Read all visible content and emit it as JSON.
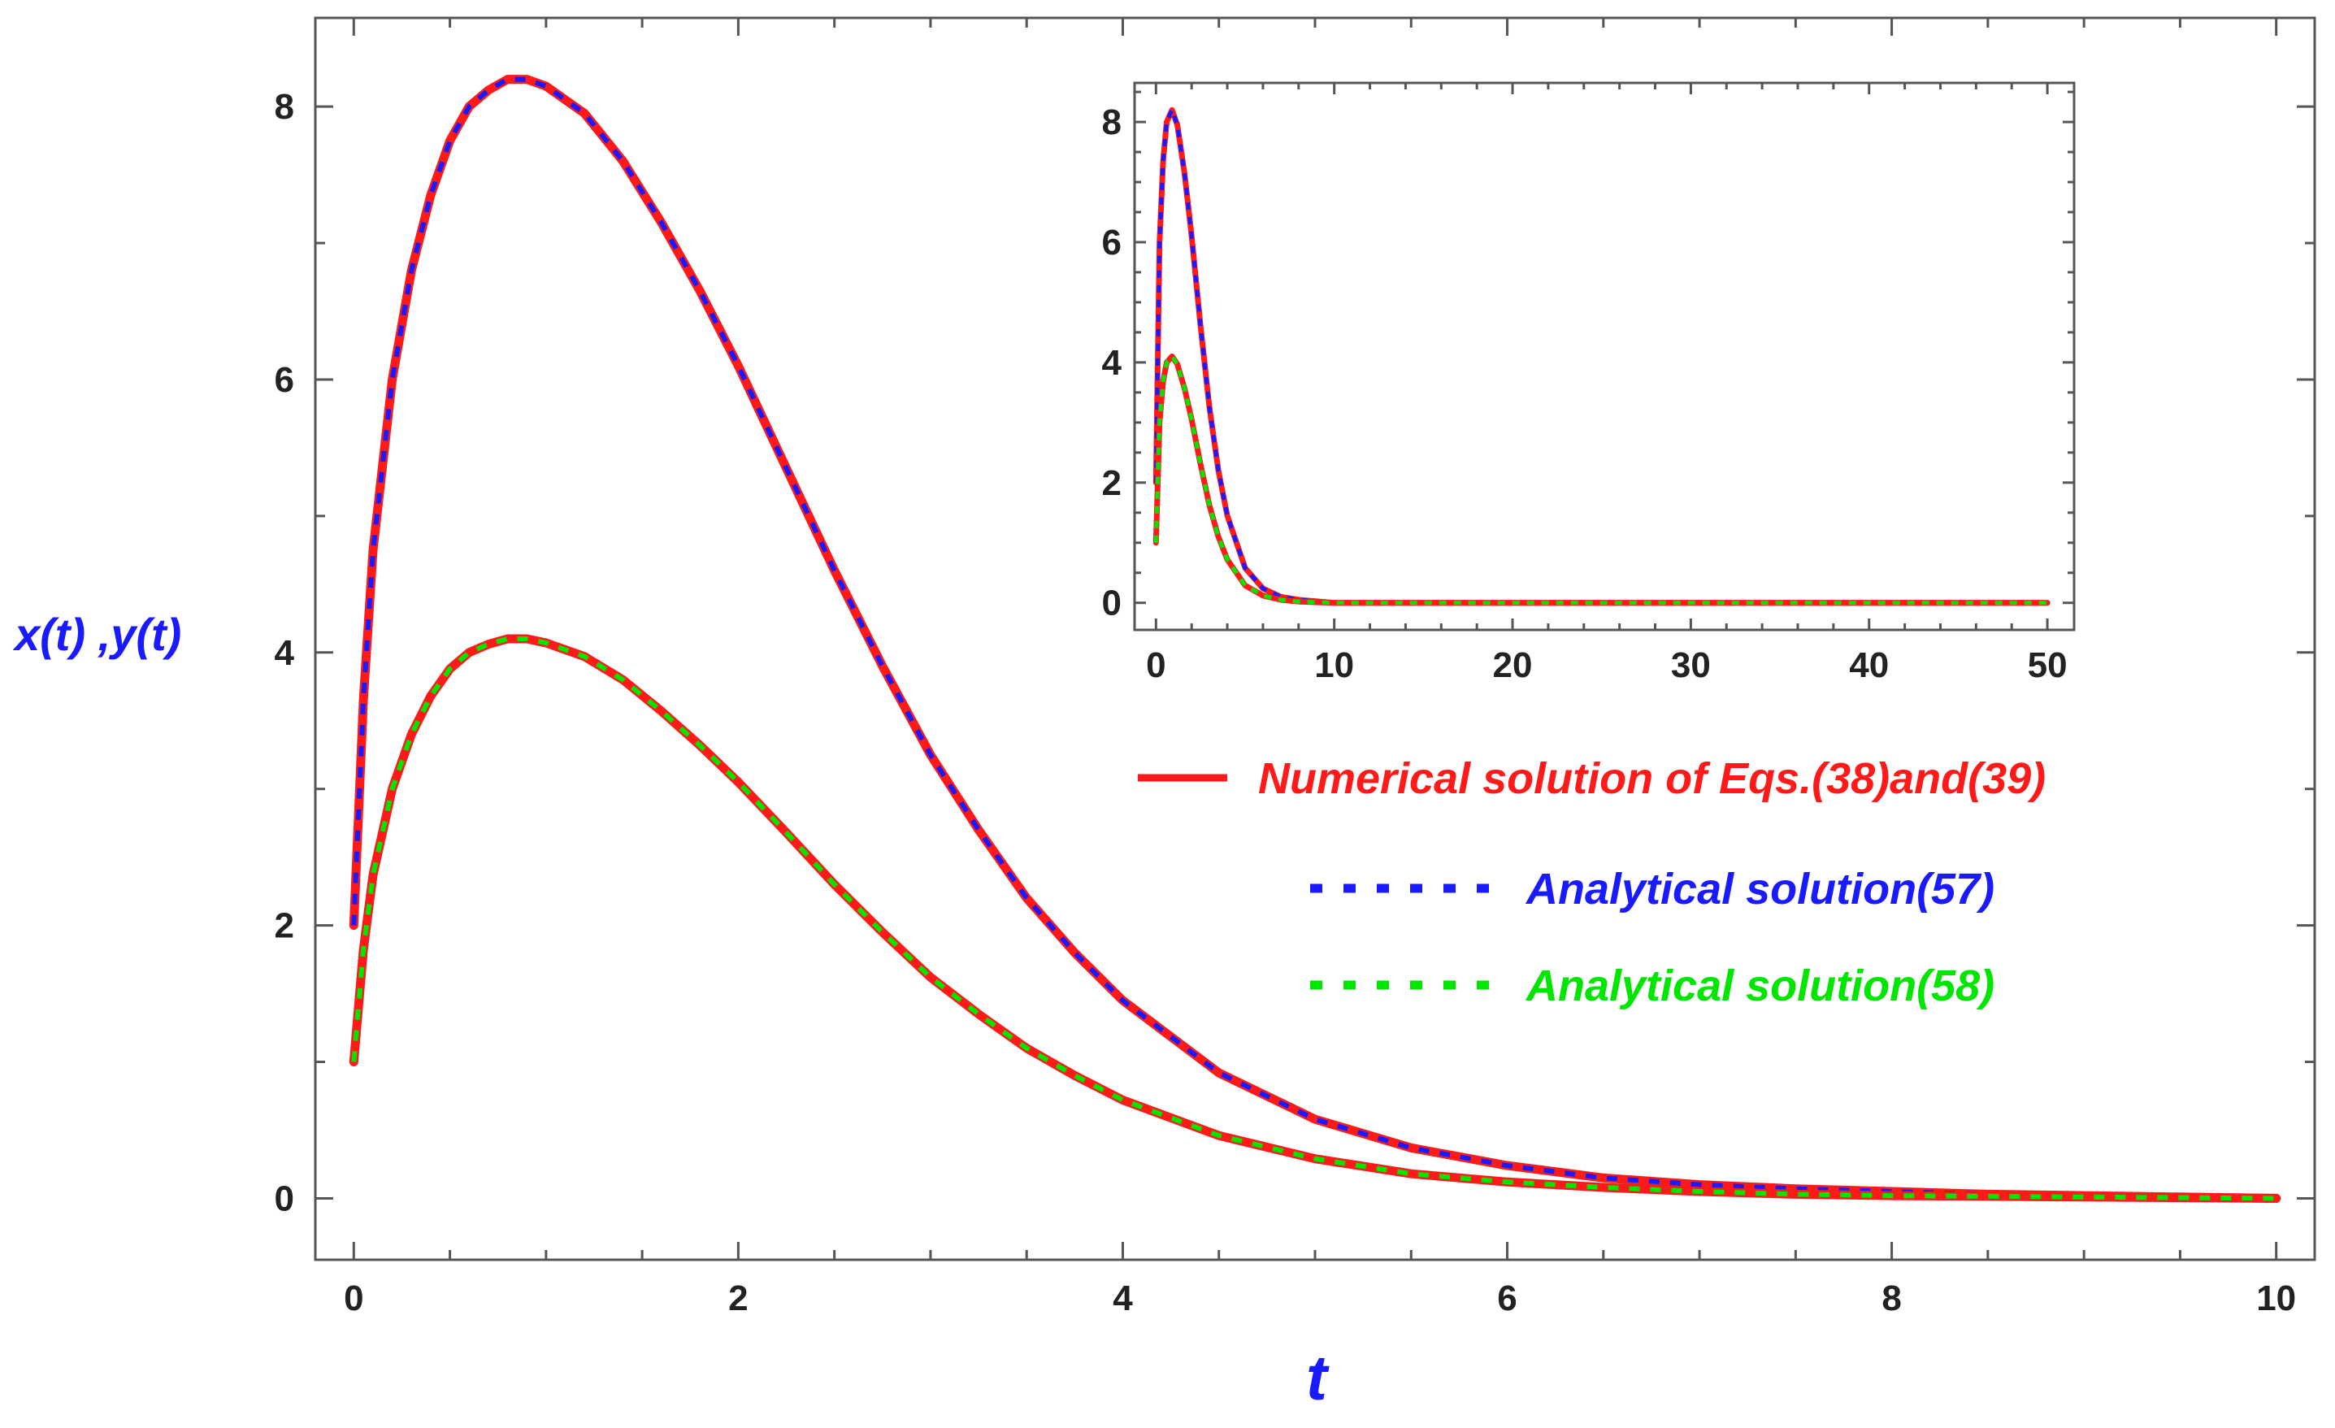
{
  "colors": {
    "numerical": "#ff1a1a",
    "analytical_x": "#1a1aff",
    "analytical_y": "#00e600",
    "axis_title": "#1a1aff",
    "frame": "#555555",
    "tick_text": "#222222"
  },
  "labels": {
    "ylabel": "x(t) ,y(t)",
    "xlabel": "t"
  },
  "legend": {
    "placement": "right-center",
    "items": [
      {
        "text": "Numerical solution of Eqs.(38)and(39)",
        "style": "solid",
        "color": "#ff1a1a"
      },
      {
        "text": "Analytical solution(57)",
        "style": "dotted",
        "color": "#1a1aff"
      },
      {
        "text": "Analytical solution(58)",
        "style": "dotted",
        "color": "#00e600"
      }
    ]
  },
  "chart_data": [
    {
      "id": "main",
      "type": "line",
      "xlabel": "t",
      "ylabel": "x(t) ,y(t)",
      "xlim": [
        -0.2,
        10.2
      ],
      "ylim": [
        -0.45,
        8.65
      ],
      "xticks": [
        0,
        2,
        4,
        6,
        8,
        10
      ],
      "yticks": [
        0,
        2,
        4,
        6,
        8
      ],
      "x_minor_step": 0.5,
      "y_minor_step": 1,
      "grid": false,
      "series": [
        {
          "name": "Numerical solution of Eqs.(38)and(39)",
          "style": "solid",
          "color": "#ff1a1a",
          "x": [
            0,
            0.05,
            0.1,
            0.2,
            0.3,
            0.4,
            0.5,
            0.6,
            0.7,
            0.8,
            0.9,
            1.0,
            1.2,
            1.4,
            1.6,
            1.8,
            2.0,
            2.25,
            2.5,
            2.75,
            3.0,
            3.25,
            3.5,
            3.75,
            4.0,
            4.5,
            5.0,
            5.5,
            6.0,
            6.5,
            7.0,
            7.5,
            8.0,
            8.5,
            9.0,
            9.5,
            10.0
          ],
          "y": [
            2.0,
            3.65,
            4.75,
            6.0,
            6.8,
            7.35,
            7.75,
            8.0,
            8.12,
            8.2,
            8.2,
            8.15,
            7.95,
            7.6,
            7.15,
            6.65,
            6.1,
            5.35,
            4.6,
            3.9,
            3.25,
            2.7,
            2.2,
            1.8,
            1.45,
            0.92,
            0.58,
            0.37,
            0.24,
            0.15,
            0.1,
            0.07,
            0.05,
            0.03,
            0.02,
            0.01,
            0.0
          ]
        },
        {
          "name": "Analytical solution(57)",
          "style": "dotted",
          "color": "#1a1aff",
          "x": [
            0,
            0.05,
            0.1,
            0.2,
            0.3,
            0.4,
            0.5,
            0.6,
            0.7,
            0.8,
            0.9,
            1.0,
            1.2,
            1.4,
            1.6,
            1.8,
            2.0,
            2.25,
            2.5,
            2.75,
            3.0,
            3.25,
            3.5,
            3.75,
            4.0,
            4.5,
            5.0,
            5.5,
            6.0,
            6.5,
            7.0,
            7.5,
            8.0,
            8.5,
            9.0,
            9.5,
            10.0
          ],
          "y": [
            2.0,
            3.65,
            4.75,
            6.0,
            6.8,
            7.35,
            7.75,
            8.0,
            8.12,
            8.2,
            8.2,
            8.15,
            7.95,
            7.6,
            7.15,
            6.65,
            6.1,
            5.35,
            4.6,
            3.9,
            3.25,
            2.7,
            2.2,
            1.8,
            1.45,
            0.92,
            0.58,
            0.37,
            0.24,
            0.15,
            0.1,
            0.07,
            0.05,
            0.03,
            0.02,
            0.01,
            0.0
          ]
        },
        {
          "name": "Numerical solution of Eqs.(38)and(39)",
          "style": "solid",
          "color": "#ff1a1a",
          "x": [
            0,
            0.05,
            0.1,
            0.2,
            0.3,
            0.4,
            0.5,
            0.6,
            0.7,
            0.8,
            0.9,
            1.0,
            1.2,
            1.4,
            1.6,
            1.8,
            2.0,
            2.25,
            2.5,
            2.75,
            3.0,
            3.25,
            3.5,
            3.75,
            4.0,
            4.5,
            5.0,
            5.5,
            6.0,
            6.5,
            7.0,
            7.5,
            8.0,
            8.5,
            9.0,
            9.5,
            10.0
          ],
          "y": [
            1.0,
            1.82,
            2.37,
            3.0,
            3.4,
            3.68,
            3.88,
            4.0,
            4.06,
            4.1,
            4.1,
            4.07,
            3.97,
            3.8,
            3.57,
            3.32,
            3.05,
            2.68,
            2.3,
            1.95,
            1.62,
            1.35,
            1.1,
            0.9,
            0.72,
            0.46,
            0.29,
            0.18,
            0.12,
            0.08,
            0.05,
            0.03,
            0.02,
            0.015,
            0.01,
            0.005,
            0.0
          ]
        },
        {
          "name": "Analytical solution(58)",
          "style": "dotted",
          "color": "#00e600",
          "x": [
            0,
            0.05,
            0.1,
            0.2,
            0.3,
            0.4,
            0.5,
            0.6,
            0.7,
            0.8,
            0.9,
            1.0,
            1.2,
            1.4,
            1.6,
            1.8,
            2.0,
            2.25,
            2.5,
            2.75,
            3.0,
            3.25,
            3.5,
            3.75,
            4.0,
            4.5,
            5.0,
            5.5,
            6.0,
            6.5,
            7.0,
            7.5,
            8.0,
            8.5,
            9.0,
            9.5,
            10.0
          ],
          "y": [
            1.0,
            1.82,
            2.37,
            3.0,
            3.4,
            3.68,
            3.88,
            4.0,
            4.06,
            4.1,
            4.1,
            4.07,
            3.97,
            3.8,
            3.57,
            3.32,
            3.05,
            2.68,
            2.3,
            1.95,
            1.62,
            1.35,
            1.1,
            0.9,
            0.72,
            0.46,
            0.29,
            0.18,
            0.12,
            0.08,
            0.05,
            0.03,
            0.02,
            0.015,
            0.01,
            0.005,
            0.0
          ]
        }
      ]
    },
    {
      "id": "inset",
      "type": "line",
      "xlim": [
        -1.2,
        51.5
      ],
      "ylim": [
        -0.45,
        8.65
      ],
      "xticks": [
        0,
        10,
        20,
        30,
        40,
        50
      ],
      "yticks": [
        0,
        2,
        4,
        6,
        8
      ],
      "x_minor_step": 2,
      "y_minor_step": 0.5,
      "grid": false,
      "series": [
        {
          "name": "Numerical solution of Eqs.(38)and(39)",
          "style": "solid",
          "color": "#ff1a1a",
          "x": [
            0,
            0.2,
            0.4,
            0.6,
            0.9,
            1.2,
            1.6,
            2.0,
            2.5,
            3.0,
            3.5,
            4.0,
            5.0,
            6.0,
            7.0,
            8.0,
            10.0,
            15.0,
            20.0,
            30.0,
            40.0,
            50.0
          ],
          "y": [
            2.0,
            6.0,
            7.35,
            8.0,
            8.2,
            7.95,
            7.15,
            6.1,
            4.6,
            3.25,
            2.2,
            1.45,
            0.58,
            0.24,
            0.1,
            0.05,
            0.0,
            0.0,
            0.0,
            0.0,
            0.0,
            0.0
          ]
        },
        {
          "name": "Analytical solution(57)",
          "style": "dotted",
          "color": "#1a1aff",
          "x": [
            0,
            0.2,
            0.4,
            0.6,
            0.9,
            1.2,
            1.6,
            2.0,
            2.5,
            3.0,
            3.5,
            4.0,
            5.0,
            6.0,
            7.0,
            8.0,
            10.0,
            15.0,
            20.0,
            30.0,
            40.0,
            50.0
          ],
          "y": [
            2.0,
            6.0,
            7.35,
            8.0,
            8.2,
            7.95,
            7.15,
            6.1,
            4.6,
            3.25,
            2.2,
            1.45,
            0.58,
            0.24,
            0.1,
            0.05,
            0.0,
            0.0,
            0.0,
            0.0,
            0.0,
            0.0
          ]
        },
        {
          "name": "Numerical solution of Eqs.(38)and(39)",
          "style": "solid",
          "color": "#ff1a1a",
          "x": [
            0,
            0.2,
            0.4,
            0.6,
            0.9,
            1.2,
            1.6,
            2.0,
            2.5,
            3.0,
            3.5,
            4.0,
            5.0,
            6.0,
            7.0,
            8.0,
            10.0,
            15.0,
            20.0,
            30.0,
            40.0,
            50.0
          ],
          "y": [
            1.0,
            3.0,
            3.68,
            4.0,
            4.1,
            3.97,
            3.57,
            3.05,
            2.3,
            1.62,
            1.1,
            0.72,
            0.29,
            0.12,
            0.05,
            0.02,
            0.0,
            0.0,
            0.0,
            0.0,
            0.0,
            0.0
          ]
        },
        {
          "name": "Analytical solution(58)",
          "style": "dotted",
          "color": "#00e600",
          "x": [
            0,
            0.2,
            0.4,
            0.6,
            0.9,
            1.2,
            1.6,
            2.0,
            2.5,
            3.0,
            3.5,
            4.0,
            5.0,
            6.0,
            7.0,
            8.0,
            10.0,
            15.0,
            20.0,
            30.0,
            40.0,
            50.0
          ],
          "y": [
            1.0,
            3.0,
            3.68,
            4.0,
            4.1,
            3.97,
            3.57,
            3.05,
            2.3,
            1.62,
            1.1,
            0.72,
            0.29,
            0.12,
            0.05,
            0.02,
            0.0,
            0.0,
            0.0,
            0.0,
            0.0,
            0.0
          ]
        }
      ]
    }
  ]
}
